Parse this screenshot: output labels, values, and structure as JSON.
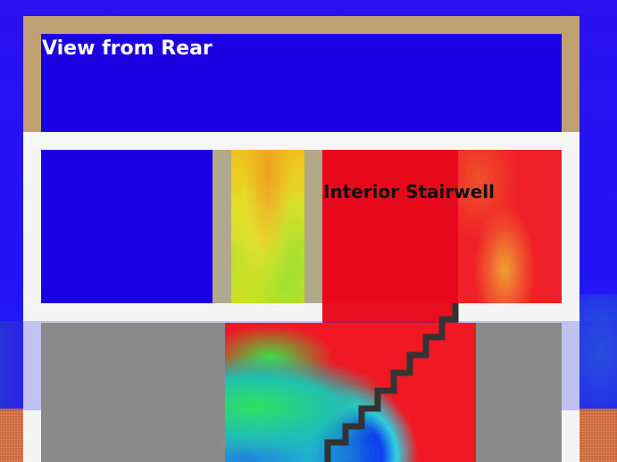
{
  "scene": {
    "view_label": "View from Rear",
    "stairwell_label": "Interior Stairwell"
  },
  "colors": {
    "sky": "#2a14ee",
    "roof_frame": "#c0a070",
    "wall_white": "#f4f4f4",
    "room_blue": "#1a00e0",
    "pillar": "#b0a888",
    "floor_gray": "#8a8a8a",
    "ground": "#c86438",
    "stair_edge": "#333333",
    "heat_red": "#e8101c",
    "heat_yellow": "#f0d020",
    "heat_green": "#40e040"
  }
}
